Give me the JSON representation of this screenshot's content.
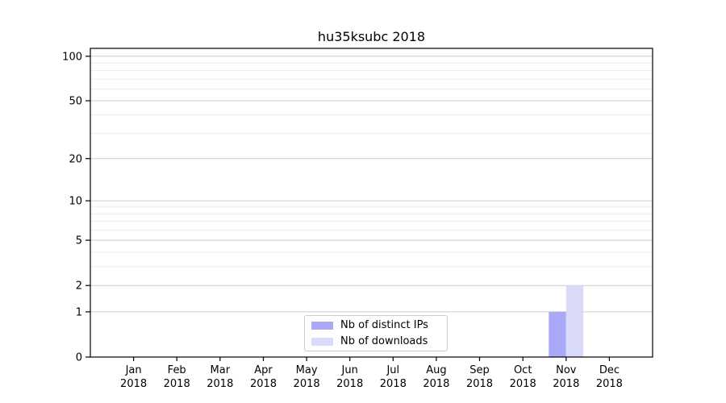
{
  "chart_data": {
    "type": "bar",
    "title": "hu35ksubc 2018",
    "categories": [
      "Jan 2018",
      "Feb 2018",
      "Mar 2018",
      "Apr 2018",
      "May 2018",
      "Jun 2018",
      "Jul 2018",
      "Aug 2018",
      "Sep 2018",
      "Oct 2018",
      "Nov 2018",
      "Dec 2018"
    ],
    "series": [
      {
        "name": "Nb of distinct IPs",
        "color": "#a9a9f7",
        "values": [
          0,
          0,
          0,
          0,
          0,
          0,
          0,
          0,
          0,
          0,
          1,
          0
        ]
      },
      {
        "name": "Nb of downloads",
        "color": "#d9d9f8",
        "values": [
          0,
          0,
          0,
          0,
          0,
          0,
          0,
          0,
          0,
          0,
          2,
          0
        ]
      }
    ],
    "xlabel": "",
    "ylabel": "",
    "yscale": "log1p",
    "ylim": [
      0,
      113
    ],
    "yticks": [
      0,
      1,
      2,
      5,
      10,
      20,
      50,
      100
    ],
    "yticks_minor": [
      3,
      4,
      6,
      7,
      8,
      9,
      30,
      40,
      60,
      70,
      80,
      90
    ],
    "grid": true,
    "legend_position": "lower center-right inside plot",
    "colors": {
      "spine": "#000000",
      "tick": "#000000",
      "grid_major": "#cccccc",
      "grid_minor": "#ebebeb",
      "text": "#000000"
    }
  }
}
